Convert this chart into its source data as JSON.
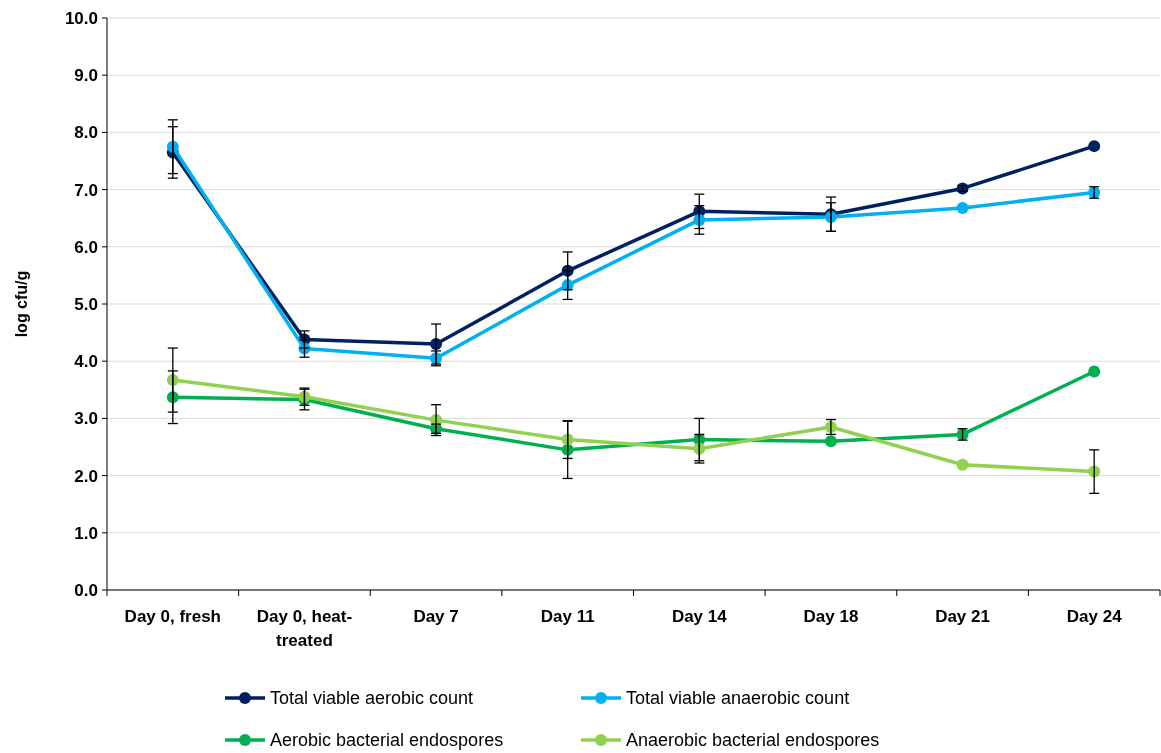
{
  "chart_data": {
    "type": "line",
    "ylabel": "log cfu/g",
    "categories": [
      "Day 0, fresh",
      "Day 0, heat-treated",
      "Day 7",
      "Day 11",
      "Day 14",
      "Day 18",
      "Day 21",
      "Day 24"
    ],
    "ylim": [
      0,
      10
    ],
    "yticks": [
      {
        "value": 0,
        "label": "0.0"
      },
      {
        "value": 1,
        "label": "1.0"
      },
      {
        "value": 2,
        "label": "2.0"
      },
      {
        "value": 3,
        "label": "3.0"
      },
      {
        "value": 4,
        "label": "4.0"
      },
      {
        "value": 5,
        "label": "5.0"
      },
      {
        "value": 6,
        "label": "6.0"
      },
      {
        "value": 7,
        "label": "7.0"
      },
      {
        "value": 8,
        "label": "8.0"
      },
      {
        "value": 9,
        "label": "9.0"
      },
      {
        "value": 10,
        "label": "10.0"
      }
    ],
    "grid": "y",
    "legend": "bottom",
    "marker": "circle",
    "line_style": "solid",
    "series": [
      {
        "name": "Total viable aerobic count",
        "color": "#002060",
        "values": [
          7.65,
          4.38,
          4.3,
          5.58,
          6.62,
          6.57,
          7.02,
          7.76
        ],
        "errors": [
          0.45,
          0.15,
          0.35,
          0.33,
          0.3,
          0.3,
          0.05,
          null
        ]
      },
      {
        "name": "Total viable anaerobic count",
        "color": "#00b0f0",
        "values": [
          7.75,
          4.22,
          4.05,
          5.33,
          6.47,
          6.52,
          6.68,
          6.95
        ],
        "errors": [
          0.47,
          0.15,
          0.13,
          0.25,
          0.25,
          0.25,
          null,
          0.1
        ]
      },
      {
        "name": "Aerobic bacterial endospores",
        "color": "#00b050",
        "values": [
          3.37,
          3.33,
          2.82,
          2.45,
          2.63,
          2.6,
          2.72,
          3.82
        ],
        "errors": [
          0.46,
          0.18,
          0.08,
          0.5,
          0.37,
          null,
          0.1,
          null
        ]
      },
      {
        "name": "Anaerobic bacterial endospores",
        "color": "#92d050",
        "values": [
          3.67,
          3.38,
          2.97,
          2.63,
          2.47,
          2.85,
          2.19,
          2.07
        ],
        "errors": [
          0.56,
          0.15,
          0.27,
          0.33,
          0.25,
          0.13,
          null,
          0.38
        ]
      }
    ]
  }
}
